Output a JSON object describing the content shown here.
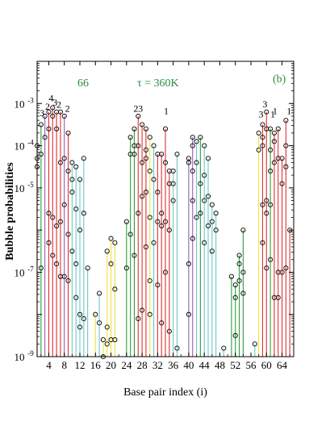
{
  "chart_data": {
    "type": "scatter",
    "title": "",
    "annotations": [
      {
        "text": "66",
        "color": "#2e8b3a"
      },
      {
        "text": "τ = 360K",
        "color": "#2e8b3a"
      },
      {
        "text": "(b)",
        "color": "#2e8b3a"
      }
    ],
    "xlabel": "Base pair index (i)",
    "ylabel": "Bubble probabilities",
    "xlim": [
      1,
      67
    ],
    "ylim_log10": [
      -9,
      -2
    ],
    "y_scale": "log",
    "x_ticks": [
      4,
      8,
      12,
      16,
      20,
      24,
      28,
      32,
      36,
      40,
      44,
      48,
      52,
      56,
      60,
      64
    ],
    "y_ticks": [
      {
        "exp": -9,
        "label": "10",
        "sup": "-9"
      },
      {
        "exp": -7,
        "label": "10",
        "sup": "-7"
      },
      {
        "exp": -5,
        "label": "10",
        "sup": "-5"
      },
      {
        "exp": -4,
        "label": "10",
        "sup": "-4"
      },
      {
        "exp": -3,
        "label": "10",
        "sup": "-3"
      }
    ],
    "grid": false,
    "count_labels": [
      {
        "x": 2.3,
        "text": "3",
        "y": -3.3
      },
      {
        "x": 3.7,
        "text": "2",
        "y": -3.15
      },
      {
        "x": 4.6,
        "text": "4",
        "y": -2.95
      },
      {
        "x": 5.6,
        "text": "3",
        "y": -3.05
      },
      {
        "x": 6.6,
        "text": "2",
        "y": -3.1
      },
      {
        "x": 8.8,
        "text": "2",
        "y": -3.2
      },
      {
        "x": 26.4,
        "text": "2",
        "y": -3.2
      },
      {
        "x": 27.6,
        "text": "3",
        "y": -3.2
      },
      {
        "x": 34.2,
        "text": "1",
        "y": -3.25
      },
      {
        "x": 58.6,
        "text": "3",
        "y": -3.33
      },
      {
        "x": 59.6,
        "text": "3",
        "y": -3.09
      },
      {
        "x": 61.6,
        "text": "1",
        "y": -3.33
      },
      {
        "x": 62.2,
        "text": "1",
        "y": -3.25
      },
      {
        "x": 65.8,
        "text": "1",
        "y": -3.25
      }
    ],
    "series": [
      {
        "x": 1,
        "color": "#e03030",
        "y": [
          -4.0,
          -4.3,
          -4.5
        ]
      },
      {
        "x": 2,
        "color": "#2e9e3a",
        "y": [
          -3.5,
          -4.2,
          -6.9
        ]
      },
      {
        "x": 3,
        "color": "#9b59b6",
        "y": [
          -3.3,
          -3.8
        ]
      },
      {
        "x": 4,
        "color": "#e03030",
        "y": [
          -3.2,
          -3.6,
          -5.6,
          -6.3
        ]
      },
      {
        "x": 5,
        "color": "#e03030",
        "y": [
          -3.1,
          -3.3,
          -5.7,
          -6.6
        ]
      },
      {
        "x": 6,
        "color": "#e03030",
        "y": [
          -3.2,
          -3.6,
          -5.9,
          -6.8
        ]
      },
      {
        "x": 7,
        "color": "#e03030",
        "y": [
          -3.2,
          -4.4,
          -5.8,
          -7.1
        ]
      },
      {
        "x": 8,
        "color": "#9b59b6",
        "y": [
          -3.3,
          -4.3,
          -5.4,
          -7.1
        ]
      },
      {
        "x": 9,
        "color": "#e03030",
        "y": [
          -3.7,
          -4.6,
          -6.1,
          -7.2
        ]
      },
      {
        "x": 10,
        "color": "#6ec6c6",
        "y": [
          -4.4,
          -4.8,
          -5.1,
          -6.5
        ]
      },
      {
        "x": 11,
        "color": "#6ec6c6",
        "y": [
          -4.5,
          -5.5,
          -6.8,
          -7.6
        ]
      },
      {
        "x": 12,
        "color": "#6ec6c6",
        "y": [
          -4.8,
          -6.0,
          -8.0,
          -8.3
        ]
      },
      {
        "x": 13,
        "color": "#6ec6c6",
        "y": [
          -4.3,
          -5.6,
          -8.1
        ]
      },
      {
        "x": 14,
        "color": "#6ec6c6",
        "y": [
          -6.9
        ]
      },
      {
        "x": 16,
        "color": "#f0e040",
        "y": [
          -8.0
        ]
      },
      {
        "x": 17,
        "color": "#6ec6c6",
        "y": [
          -7.5,
          -8.2
        ]
      },
      {
        "x": 18,
        "color": "#f0e040",
        "y": [
          -8.6,
          -9.0
        ]
      },
      {
        "x": 19,
        "color": "#f0e040",
        "y": [
          -6.5,
          -8.3,
          -8.7
        ]
      },
      {
        "x": 20,
        "color": "#f0e040",
        "y": [
          -6.2,
          -6.8,
          -8.6
        ]
      },
      {
        "x": 21,
        "color": "#f0e040",
        "y": [
          -6.3,
          -7.4,
          -8.6
        ]
      },
      {
        "x": 24,
        "color": "#2e9e3a",
        "y": [
          -5.8,
          -6.9
        ]
      },
      {
        "x": 25,
        "color": "#2e9e3a",
        "y": [
          -3.8,
          -4.2,
          -6.1
        ]
      },
      {
        "x": 26,
        "color": "#2e9e3a",
        "y": [
          -3.6,
          -4.0,
          -4.2,
          -6.6
        ]
      },
      {
        "x": 27,
        "color": "#e03030",
        "y": [
          -3.3,
          -4.0,
          -5.6,
          -8.1
        ]
      },
      {
        "x": 28,
        "color": "#e03030",
        "y": [
          -3.5,
          -4.4,
          -5.2,
          -7.9
        ]
      },
      {
        "x": 29,
        "color": "#e03030",
        "y": [
          -3.6,
          -4.1,
          -4.3,
          -5.1,
          -6.4
        ]
      },
      {
        "x": 30,
        "color": "#f0e040",
        "y": [
          -3.8,
          -4.6,
          -5.7,
          -7.2,
          -8.0
        ]
      },
      {
        "x": 31,
        "color": "#6ec6c6",
        "y": [
          -4.0,
          -4.8,
          -6.3
        ]
      },
      {
        "x": 32,
        "color": "#e03030",
        "y": [
          -4.2,
          -5.1,
          -5.8,
          -7.3
        ]
      },
      {
        "x": 33,
        "color": "#e03030",
        "y": [
          -4.2,
          -5.6,
          -5.9,
          -8.2
        ]
      },
      {
        "x": 34,
        "color": "#e03030",
        "y": [
          -3.6,
          -4.4,
          -5.8,
          -7.0
        ]
      },
      {
        "x": 35,
        "color": "#e03030",
        "y": [
          -4.6,
          -4.9,
          -6.0,
          -8.4
        ]
      },
      {
        "x": 36,
        "color": "#6ec6c6",
        "y": [
          -4.6,
          -4.9,
          -5.3
        ]
      },
      {
        "x": 37,
        "color": "#6ec6c6",
        "y": [
          -4.2,
          -8.8
        ]
      },
      {
        "x": 40,
        "color": "#9b59b6",
        "y": [
          -4.3,
          -4.4,
          -6.8,
          -8.0
        ]
      },
      {
        "x": 41,
        "color": "#9b59b6",
        "y": [
          -3.8,
          -4.0,
          -4.6,
          -5.3,
          -6.2
        ]
      },
      {
        "x": 42,
        "color": "#6ec6c6",
        "y": [
          -3.9,
          -4.4,
          -5.7
        ]
      },
      {
        "x": 43,
        "color": "#2e9e3a",
        "y": [
          -3.8,
          -4.9,
          -5.6
        ]
      },
      {
        "x": 44,
        "color": "#6ec6c6",
        "y": [
          -4.0,
          -4.7,
          -5.3,
          -6.3
        ]
      },
      {
        "x": 45,
        "color": "#6ec6c6",
        "y": [
          -4.3,
          -5.2,
          -5.9
        ]
      },
      {
        "x": 46,
        "color": "#6ec6c6",
        "y": [
          -5.4,
          -5.8,
          -6.5
        ]
      },
      {
        "x": 47,
        "color": "#6ec6c6",
        "y": [
          -5.6,
          -6.0
        ]
      },
      {
        "x": 49,
        "color": "#6ec6c6",
        "y": [
          -8.8
        ]
      },
      {
        "x": 51,
        "color": "#2e9e3a",
        "y": [
          -7.1
        ]
      },
      {
        "x": 52,
        "color": "#2e9e3a",
        "y": [
          -7.3,
          -7.6,
          -8.5
        ]
      },
      {
        "x": 53,
        "color": "#2e9e3a",
        "y": [
          -6.6,
          -6.8,
          -7.2
        ]
      },
      {
        "x": 54,
        "color": "#2e9e3a",
        "y": [
          -6.0,
          -7.0,
          -7.5
        ]
      },
      {
        "x": 57,
        "color": "#6ec6c6",
        "y": [
          -8.7
        ]
      },
      {
        "x": 58,
        "color": "#f0e040",
        "y": [
          -3.7,
          -4.1
        ]
      },
      {
        "x": 59,
        "color": "#e03030",
        "y": [
          -3.5,
          -3.8,
          -4.0,
          -5.4,
          -6.3
        ]
      },
      {
        "x": 60,
        "color": "#e03030",
        "y": [
          -3.2,
          -3.6,
          -5.3,
          -5.6,
          -6.9
        ]
      },
      {
        "x": 61,
        "color": "#2e9e3a",
        "y": [
          -3.6,
          -4.1,
          -4.6,
          -5.4,
          -6.7
        ]
      },
      {
        "x": 62,
        "color": "#e03030",
        "y": [
          -3.7,
          -3.9,
          -4.4,
          -7.6
        ]
      },
      {
        "x": 63,
        "color": "#e03030",
        "y": [
          -3.6,
          -4.3,
          -7.0,
          -7.6
        ]
      },
      {
        "x": 64,
        "color": "#e03030",
        "y": [
          -4.3,
          -4.9,
          -7.0
        ]
      },
      {
        "x": 65,
        "color": "#e03030",
        "y": [
          -3.4,
          -4.0,
          -4.5,
          -6.9
        ]
      },
      {
        "x": 66,
        "color": "#e03030",
        "y": [
          -6.0
        ]
      }
    ]
  }
}
